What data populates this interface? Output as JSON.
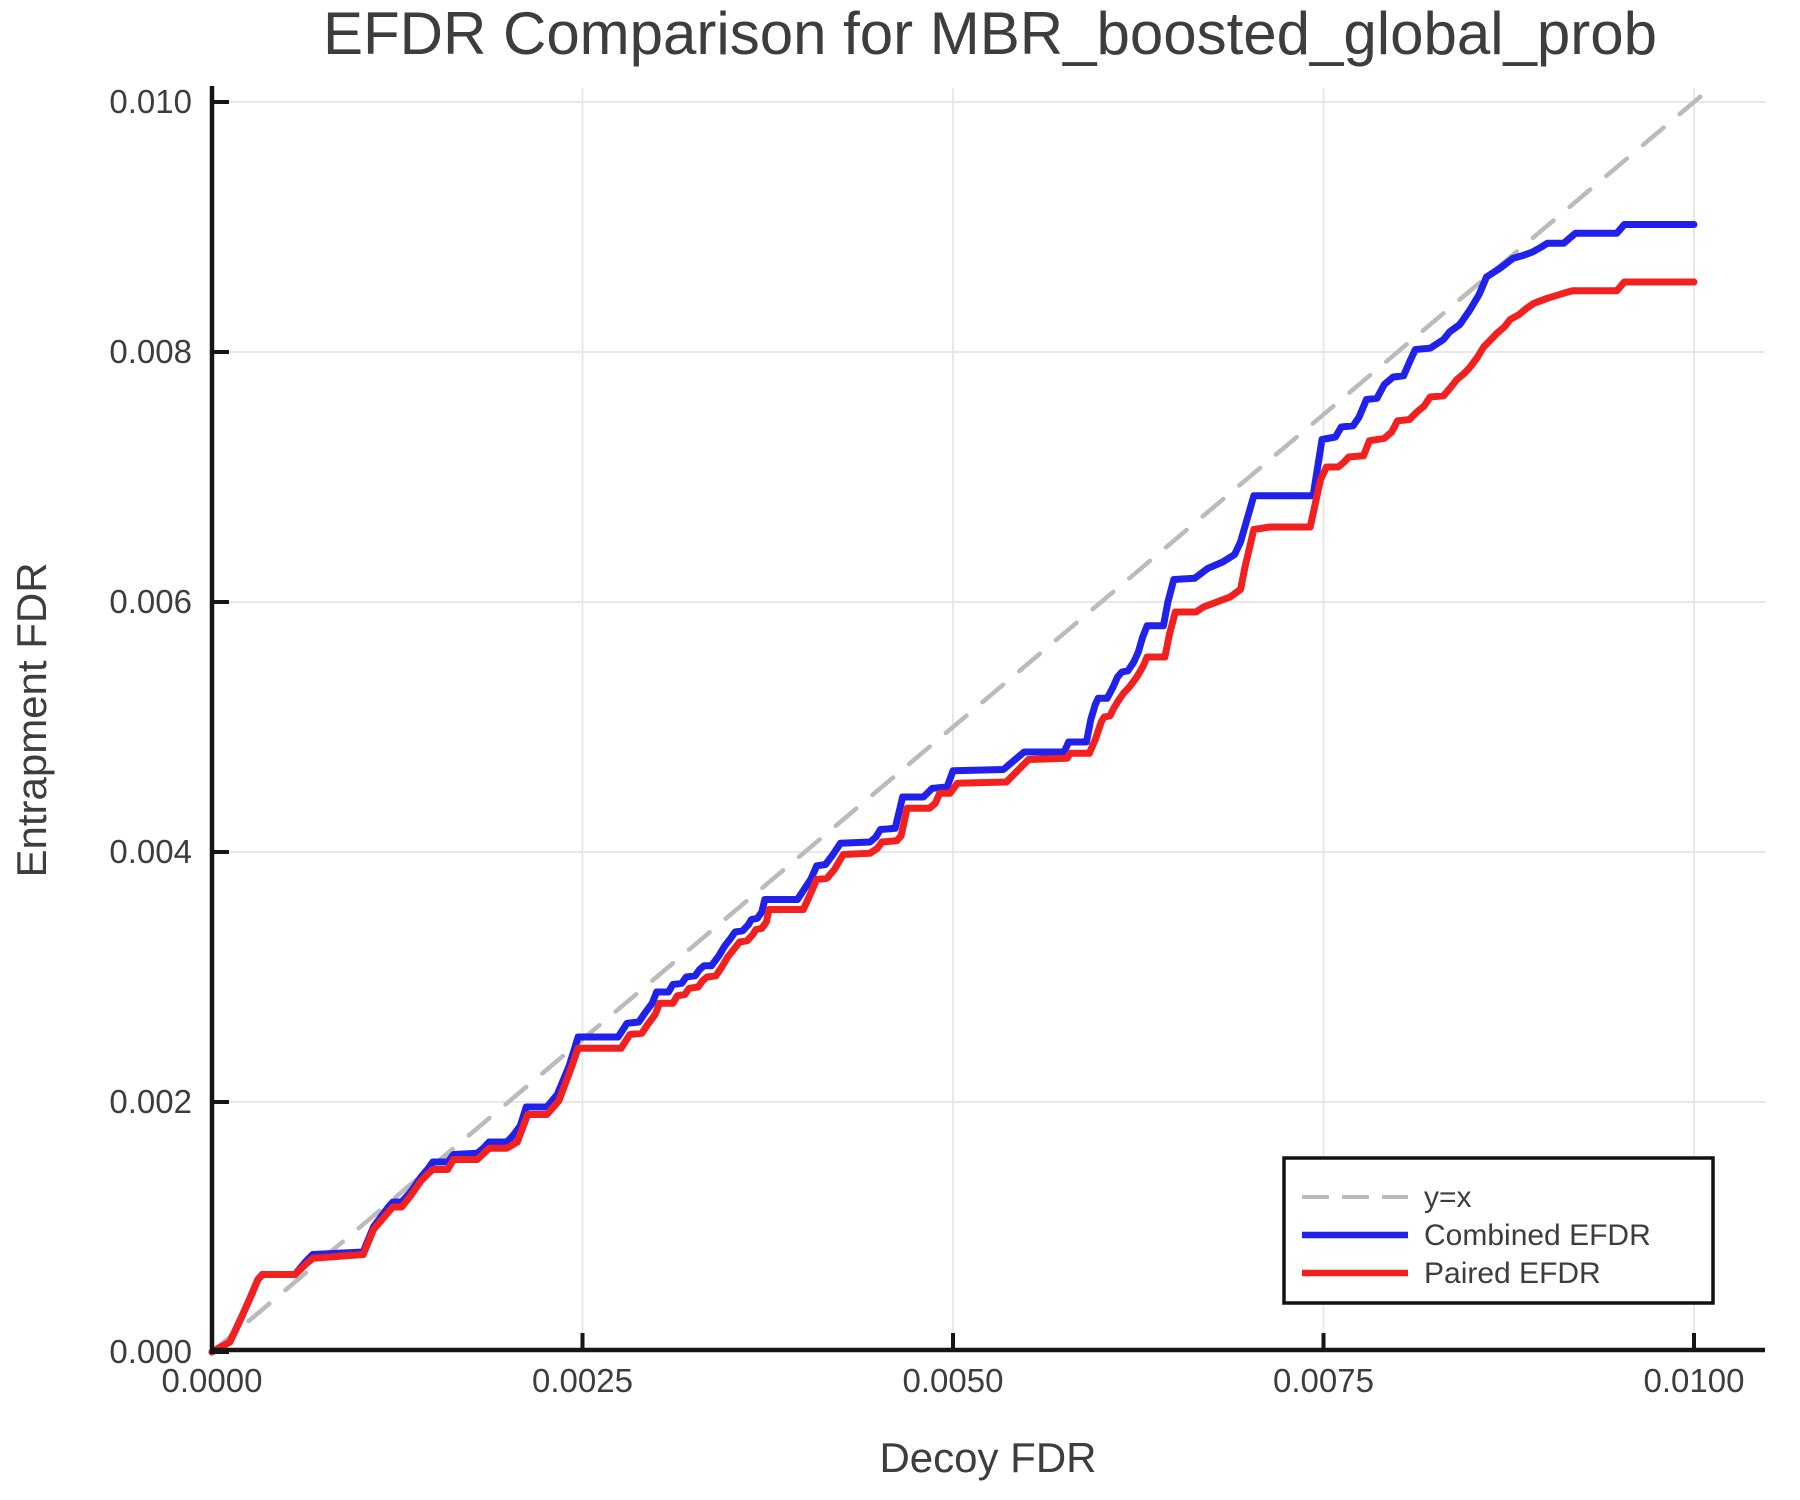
{
  "page": {
    "background": "#ffffff"
  },
  "chart_data": {
    "type": "line",
    "title": "EFDR Comparison for MBR_boosted_global_prob",
    "xlabel": "Decoy FDR",
    "ylabel": "Entrapment FDR",
    "xlim": [
      0,
      0.01048
    ],
    "ylim": [
      0,
      0.01012
    ],
    "grid": true,
    "legend_position": "lower right",
    "colors": {
      "grid": "#e8e8e8",
      "axis": "#161616",
      "text": "#3d3d3d"
    },
    "x_ticks": [
      {
        "v": 0.0,
        "label": "0.0000"
      },
      {
        "v": 0.0025,
        "label": "0.0025"
      },
      {
        "v": 0.005,
        "label": "0.0050"
      },
      {
        "v": 0.0075,
        "label": "0.0075"
      },
      {
        "v": 0.01,
        "label": "0.0100"
      }
    ],
    "y_ticks": [
      {
        "v": 0.0,
        "label": "0.000"
      },
      {
        "v": 0.002,
        "label": "0.002"
      },
      {
        "v": 0.004,
        "label": "0.004"
      },
      {
        "v": 0.006,
        "label": "0.006"
      },
      {
        "v": 0.008,
        "label": "0.008"
      },
      {
        "v": 0.01,
        "label": "0.010"
      }
    ],
    "series": [
      {
        "name": "y=x",
        "style": "dashed",
        "color": "#bbbbbb",
        "width": 4.5,
        "dash": "27 21",
        "points": [
          [
            0,
            0
          ],
          [
            0.0101,
            0.0101
          ]
        ]
      },
      {
        "name": "Combined EFDR",
        "style": "solid",
        "color": "#2121ec",
        "width": 7,
        "points": [
          [
            0,
            0
          ],
          [
            0.00012,
            8e-05
          ],
          [
            0.0002,
            0.00028
          ],
          [
            0.00026,
            0.00044
          ],
          [
            0.00031,
            0.00058
          ],
          [
            0.00034,
            0.00062
          ],
          [
            0.00056,
            0.00062
          ],
          [
            0.00063,
            0.00072
          ],
          [
            0.00068,
            0.00078
          ],
          [
            0.00102,
            0.0008
          ],
          [
            0.00109,
            0.001
          ],
          [
            0.00114,
            0.00108
          ],
          [
            0.00119,
            0.00116
          ],
          [
            0.00122,
            0.0012
          ],
          [
            0.00128,
            0.0012
          ],
          [
            0.00134,
            0.00128
          ],
          [
            0.00137,
            0.00133
          ],
          [
            0.00141,
            0.0014
          ],
          [
            0.00146,
            0.00147
          ],
          [
            0.00149,
            0.00152
          ],
          [
            0.00159,
            0.00152
          ],
          [
            0.00163,
            0.00158
          ],
          [
            0.00179,
            0.00159
          ],
          [
            0.00183,
            0.00163
          ],
          [
            0.00187,
            0.00168
          ],
          [
            0.00199,
            0.00168
          ],
          [
            0.00203,
            0.00173
          ],
          [
            0.00208,
            0.00181
          ],
          [
            0.00212,
            0.00196
          ],
          [
            0.00226,
            0.00196
          ],
          [
            0.00233,
            0.00206
          ],
          [
            0.00241,
            0.00229
          ],
          [
            0.00247,
            0.00252
          ],
          [
            0.00274,
            0.00252
          ],
          [
            0.0028,
            0.00263
          ],
          [
            0.00288,
            0.00264
          ],
          [
            0.00292,
            0.00271
          ],
          [
            0.00297,
            0.00279
          ],
          [
            0.003,
            0.00288
          ],
          [
            0.00308,
            0.00288
          ],
          [
            0.00311,
            0.00294
          ],
          [
            0.00317,
            0.00295
          ],
          [
            0.0032,
            0.003
          ],
          [
            0.00326,
            0.00301
          ],
          [
            0.00329,
            0.00306
          ],
          [
            0.00332,
            0.00309
          ],
          [
            0.00337,
            0.00309
          ],
          [
            0.00342,
            0.00317
          ],
          [
            0.00346,
            0.00325
          ],
          [
            0.0035,
            0.00331
          ],
          [
            0.00353,
            0.00336
          ],
          [
            0.00358,
            0.00337
          ],
          [
            0.00362,
            0.00342
          ],
          [
            0.00364,
            0.00346
          ],
          [
            0.00368,
            0.00347
          ],
          [
            0.00371,
            0.00352
          ],
          [
            0.00373,
            0.00362
          ],
          [
            0.00395,
            0.00362
          ],
          [
            0.00404,
            0.00378
          ],
          [
            0.00408,
            0.00389
          ],
          [
            0.00414,
            0.0039
          ],
          [
            0.00419,
            0.00398
          ],
          [
            0.00424,
            0.00407
          ],
          [
            0.00444,
            0.00408
          ],
          [
            0.00448,
            0.00412
          ],
          [
            0.00451,
            0.00418
          ],
          [
            0.00461,
            0.00419
          ],
          [
            0.00466,
            0.00444
          ],
          [
            0.0048,
            0.00444
          ],
          [
            0.00486,
            0.00451
          ],
          [
            0.00496,
            0.00452
          ],
          [
            0.005,
            0.00465
          ],
          [
            0.00534,
            0.00466
          ],
          [
            0.00548,
            0.0048
          ],
          [
            0.00575,
            0.0048
          ],
          [
            0.00578,
            0.00488
          ],
          [
            0.0059,
            0.00488
          ],
          [
            0.00593,
            0.00506
          ],
          [
            0.00596,
            0.00518
          ],
          [
            0.00598,
            0.00523
          ],
          [
            0.00604,
            0.00523
          ],
          [
            0.00608,
            0.00532
          ],
          [
            0.00611,
            0.0054
          ],
          [
            0.00614,
            0.00544
          ],
          [
            0.00618,
            0.00545
          ],
          [
            0.00622,
            0.00552
          ],
          [
            0.00625,
            0.0056
          ],
          [
            0.00628,
            0.00572
          ],
          [
            0.00631,
            0.00581
          ],
          [
            0.00642,
            0.00581
          ],
          [
            0.00645,
            0.006
          ],
          [
            0.00649,
            0.00618
          ],
          [
            0.00663,
            0.00619
          ],
          [
            0.00672,
            0.00627
          ],
          [
            0.00682,
            0.00632
          ],
          [
            0.0069,
            0.00638
          ],
          [
            0.00694,
            0.00648
          ],
          [
            0.00703,
            0.00685
          ],
          [
            0.00743,
            0.00685
          ],
          [
            0.00749,
            0.0073
          ],
          [
            0.00758,
            0.00732
          ],
          [
            0.00762,
            0.0074
          ],
          [
            0.0077,
            0.00741
          ],
          [
            0.00774,
            0.00748
          ],
          [
            0.00779,
            0.00762
          ],
          [
            0.00786,
            0.00763
          ],
          [
            0.00791,
            0.00774
          ],
          [
            0.00797,
            0.0078
          ],
          [
            0.00804,
            0.00781
          ],
          [
            0.00808,
            0.00792
          ],
          [
            0.00812,
            0.00802
          ],
          [
            0.00822,
            0.00803
          ],
          [
            0.00831,
            0.0081
          ],
          [
            0.00835,
            0.00816
          ],
          [
            0.00842,
            0.00822
          ],
          [
            0.00849,
            0.00834
          ],
          [
            0.00855,
            0.00846
          ],
          [
            0.0086,
            0.0086
          ],
          [
            0.00869,
            0.00867
          ],
          [
            0.00878,
            0.00875
          ],
          [
            0.00884,
            0.00877
          ],
          [
            0.00891,
            0.0088
          ],
          [
            0.00897,
            0.00884
          ],
          [
            0.00901,
            0.00887
          ],
          [
            0.00912,
            0.00887
          ],
          [
            0.0092,
            0.00895
          ],
          [
            0.00948,
            0.00895
          ],
          [
            0.00953,
            0.00902
          ],
          [
            0.01,
            0.00902
          ]
        ]
      },
      {
        "name": "Paired EFDR",
        "style": "solid",
        "color": "#f32020",
        "width": 7,
        "points": [
          [
            0,
            0
          ],
          [
            0.00012,
            8e-05
          ],
          [
            0.0002,
            0.00028
          ],
          [
            0.00026,
            0.00044
          ],
          [
            0.00031,
            0.00058
          ],
          [
            0.00034,
            0.00062
          ],
          [
            0.00056,
            0.00062
          ],
          [
            0.00063,
            0.0007
          ],
          [
            0.00068,
            0.00075
          ],
          [
            0.00102,
            0.00078
          ],
          [
            0.00109,
            0.00098
          ],
          [
            0.00114,
            0.00105
          ],
          [
            0.00119,
            0.00112
          ],
          [
            0.00122,
            0.00116
          ],
          [
            0.00128,
            0.00116
          ],
          [
            0.00134,
            0.00125
          ],
          [
            0.00141,
            0.00137
          ],
          [
            0.00146,
            0.00143
          ],
          [
            0.00149,
            0.00146
          ],
          [
            0.00159,
            0.00146
          ],
          [
            0.00163,
            0.00154
          ],
          [
            0.00179,
            0.00154
          ],
          [
            0.00187,
            0.00163
          ],
          [
            0.00199,
            0.00163
          ],
          [
            0.00206,
            0.00168
          ],
          [
            0.00213,
            0.0019
          ],
          [
            0.00226,
            0.0019
          ],
          [
            0.00234,
            0.00201
          ],
          [
            0.00242,
            0.00226
          ],
          [
            0.00247,
            0.00243
          ],
          [
            0.00276,
            0.00243
          ],
          [
            0.00282,
            0.00254
          ],
          [
            0.0029,
            0.00255
          ],
          [
            0.00294,
            0.00262
          ],
          [
            0.00299,
            0.0027
          ],
          [
            0.00302,
            0.00279
          ],
          [
            0.00311,
            0.00279
          ],
          [
            0.00314,
            0.00285
          ],
          [
            0.00319,
            0.00286
          ],
          [
            0.00322,
            0.00291
          ],
          [
            0.00328,
            0.00292
          ],
          [
            0.00331,
            0.00297
          ],
          [
            0.00334,
            0.003
          ],
          [
            0.0034,
            0.00301
          ],
          [
            0.00344,
            0.00308
          ],
          [
            0.00348,
            0.00316
          ],
          [
            0.00352,
            0.00322
          ],
          [
            0.00356,
            0.00328
          ],
          [
            0.00361,
            0.00329
          ],
          [
            0.00365,
            0.00334
          ],
          [
            0.00367,
            0.00338
          ],
          [
            0.00371,
            0.00339
          ],
          [
            0.00374,
            0.00344
          ],
          [
            0.00376,
            0.00354
          ],
          [
            0.00399,
            0.00354
          ],
          [
            0.00404,
            0.00367
          ],
          [
            0.00408,
            0.00378
          ],
          [
            0.00415,
            0.00379
          ],
          [
            0.0042,
            0.00386
          ],
          [
            0.00426,
            0.00398
          ],
          [
            0.00444,
            0.00399
          ],
          [
            0.00449,
            0.00403
          ],
          [
            0.00452,
            0.00408
          ],
          [
            0.00462,
            0.00409
          ],
          [
            0.00465,
            0.00413
          ],
          [
            0.00469,
            0.00435
          ],
          [
            0.00484,
            0.00435
          ],
          [
            0.00488,
            0.00439
          ],
          [
            0.00491,
            0.00447
          ],
          [
            0.00498,
            0.00447
          ],
          [
            0.00503,
            0.00455
          ],
          [
            0.00536,
            0.00456
          ],
          [
            0.00551,
            0.00474
          ],
          [
            0.00577,
            0.00475
          ],
          [
            0.00579,
            0.00479
          ],
          [
            0.00592,
            0.00479
          ],
          [
            0.00596,
            0.0049
          ],
          [
            0.006,
            0.00504
          ],
          [
            0.00602,
            0.00508
          ],
          [
            0.00606,
            0.00509
          ],
          [
            0.00608,
            0.00514
          ],
          [
            0.00611,
            0.0052
          ],
          [
            0.00615,
            0.00527
          ],
          [
            0.00619,
            0.00532
          ],
          [
            0.00624,
            0.0054
          ],
          [
            0.00628,
            0.00548
          ],
          [
            0.00631,
            0.00556
          ],
          [
            0.00643,
            0.00556
          ],
          [
            0.00646,
            0.00574
          ],
          [
            0.0065,
            0.00592
          ],
          [
            0.00664,
            0.00592
          ],
          [
            0.00669,
            0.00596
          ],
          [
            0.00678,
            0.006
          ],
          [
            0.00687,
            0.00604
          ],
          [
            0.00694,
            0.0061
          ],
          [
            0.00697,
            0.00628
          ],
          [
            0.00703,
            0.00658
          ],
          [
            0.00714,
            0.0066
          ],
          [
            0.00741,
            0.0066
          ],
          [
            0.00748,
            0.00698
          ],
          [
            0.00752,
            0.00708
          ],
          [
            0.0076,
            0.00708
          ],
          [
            0.00764,
            0.00712
          ],
          [
            0.00767,
            0.00716
          ],
          [
            0.00777,
            0.00717
          ],
          [
            0.00781,
            0.00729
          ],
          [
            0.00791,
            0.00731
          ],
          [
            0.00796,
            0.00736
          ],
          [
            0.008,
            0.00745
          ],
          [
            0.00808,
            0.00746
          ],
          [
            0.00813,
            0.00752
          ],
          [
            0.00818,
            0.00757
          ],
          [
            0.00822,
            0.00764
          ],
          [
            0.00831,
            0.00765
          ],
          [
            0.00836,
            0.00772
          ],
          [
            0.0084,
            0.00778
          ],
          [
            0.00845,
            0.00783
          ],
          [
            0.00849,
            0.00788
          ],
          [
            0.00854,
            0.00796
          ],
          [
            0.00858,
            0.00804
          ],
          [
            0.00863,
            0.0081
          ],
          [
            0.00867,
            0.00815
          ],
          [
            0.00872,
            0.0082
          ],
          [
            0.00876,
            0.00826
          ],
          [
            0.00882,
            0.0083
          ],
          [
            0.00887,
            0.00835
          ],
          [
            0.00892,
            0.00839
          ],
          [
            0.00901,
            0.00843
          ],
          [
            0.00912,
            0.00847
          ],
          [
            0.00918,
            0.00849
          ],
          [
            0.00948,
            0.00849
          ],
          [
            0.00953,
            0.00856
          ],
          [
            0.01,
            0.00856
          ]
        ]
      }
    ]
  }
}
